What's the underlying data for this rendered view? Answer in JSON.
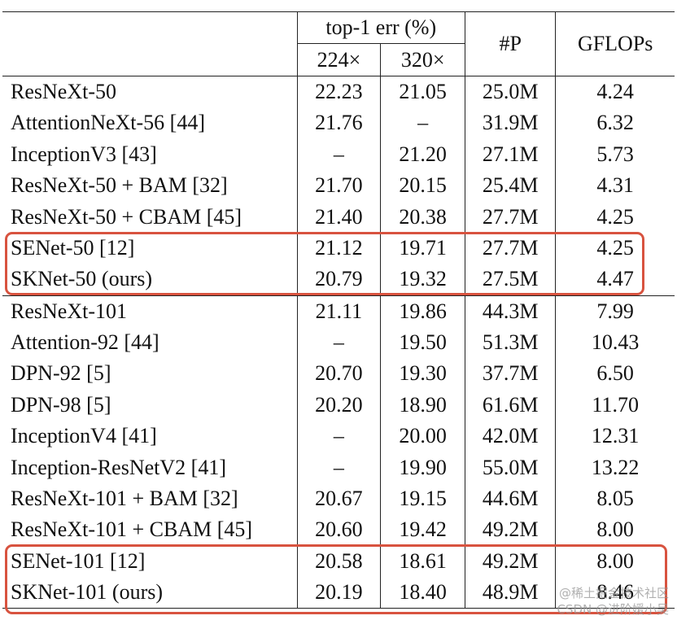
{
  "header": {
    "err_group": "top-1 err (%)",
    "res_224": "224×",
    "res_320": "320×",
    "params": "#P",
    "gflops": "GFLOPs"
  },
  "groups": [
    {
      "rows": [
        {
          "model": "ResNeXt-50",
          "err224": "22.23",
          "err320": "21.05",
          "params": "25.0M",
          "gflops": "4.24"
        },
        {
          "model": "AttentionNeXt-56 [44]",
          "err224": "21.76",
          "err320": "–",
          "params": "31.9M",
          "gflops": "6.32"
        },
        {
          "model": "InceptionV3 [43]",
          "err224": "–",
          "err320": "21.20",
          "params": "27.1M",
          "gflops": "5.73"
        },
        {
          "model": "ResNeXt-50 + BAM [32]",
          "err224": "21.70",
          "err320": "20.15",
          "params": "25.4M",
          "gflops": "4.31"
        },
        {
          "model": "ResNeXt-50 + CBAM [45]",
          "err224": "21.40",
          "err320": "20.38",
          "params": "27.7M",
          "gflops": "4.25"
        },
        {
          "model": "SENet-50 [12]",
          "err224": "21.12",
          "err320": "19.71",
          "params": "27.7M",
          "gflops": "4.25"
        },
        {
          "model": "SKNet-50 (ours)",
          "err224": "20.79",
          "err320": "19.32",
          "params": "27.5M",
          "gflops": "4.47"
        }
      ]
    },
    {
      "rows": [
        {
          "model": "ResNeXt-101",
          "err224": "21.11",
          "err320": "19.86",
          "params": "44.3M",
          "gflops": "7.99"
        },
        {
          "model": "Attention-92 [44]",
          "err224": "–",
          "err320": "19.50",
          "params": "51.3M",
          "gflops": "10.43"
        },
        {
          "model": "DPN-92 [5]",
          "err224": "20.70",
          "err320": "19.30",
          "params": "37.7M",
          "gflops": "6.50"
        },
        {
          "model": "DPN-98 [5]",
          "err224": "20.20",
          "err320": "18.90",
          "params": "61.6M",
          "gflops": "11.70"
        },
        {
          "model": "InceptionV4 [41]",
          "err224": "–",
          "err320": "20.00",
          "params": "42.0M",
          "gflops": "12.31"
        },
        {
          "model": "Inception-ResNetV2 [41]",
          "err224": "–",
          "err320": "19.90",
          "params": "55.0M",
          "gflops": "13.22"
        },
        {
          "model": "ResNeXt-101 + BAM [32]",
          "err224": "20.67",
          "err320": "19.15",
          "params": "44.6M",
          "gflops": "8.05"
        },
        {
          "model": "ResNeXt-101 + CBAM [45]",
          "err224": "20.60",
          "err320": "19.42",
          "params": "49.2M",
          "gflops": "8.00"
        },
        {
          "model": "SENet-101 [12]",
          "err224": "20.58",
          "err320": "18.61",
          "params": "49.2M",
          "gflops": "8.00"
        },
        {
          "model": "SKNet-101 (ours)",
          "err224": "20.19",
          "err320": "18.40",
          "params": "48.9M",
          "gflops": "8.46"
        }
      ]
    }
  ],
  "highlight_color": "#d8533f",
  "watermark": {
    "line1": "@稀土掘金技术社区",
    "line2": "CSDN @进阶媛小吴"
  }
}
